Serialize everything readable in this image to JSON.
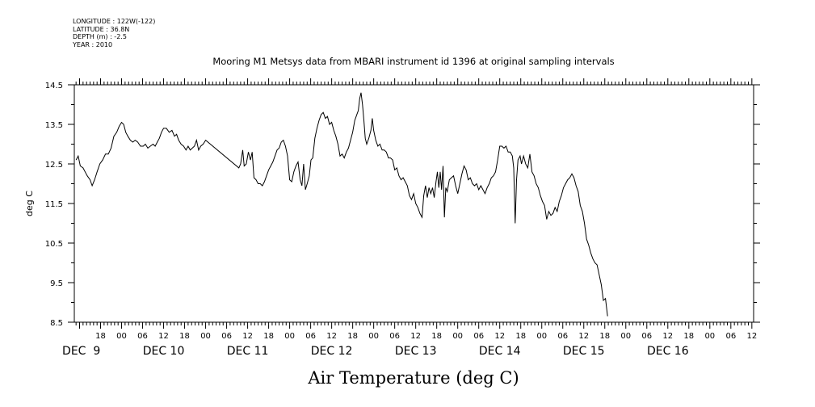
{
  "metadata": {
    "longitude": "LONGITUDE : 122W(-122)",
    "latitude": "LATITUDE : 36.8N",
    "depth": "DEPTH (m) : -2.5",
    "year": "YEAR : 2010"
  },
  "chart_data": {
    "type": "line",
    "title": "Mooring M1 Metsys data from MBARI instrument id 1396 at original sampling intervals",
    "xlabel": "Air Temperature (deg C)",
    "ylabel": "deg C",
    "ylim": [
      8.5,
      14.5
    ],
    "y_ticks": [
      "8.5",
      "9.5",
      "10.5",
      "11.5",
      "12.5",
      "13.5",
      "14.5"
    ],
    "x_unit": "hours since DEC 8 2010 00:00",
    "xlim": [
      10.5,
      204.5
    ],
    "hour_ticks": [
      {
        "h": 18,
        "label": "18"
      },
      {
        "h": 24,
        "label": "00"
      },
      {
        "h": 30,
        "label": "06"
      },
      {
        "h": 36,
        "label": "12"
      },
      {
        "h": 42,
        "label": "18"
      },
      {
        "h": 48,
        "label": "00"
      },
      {
        "h": 54,
        "label": "06"
      },
      {
        "h": 60,
        "label": "12"
      },
      {
        "h": 66,
        "label": "18"
      },
      {
        "h": 72,
        "label": "00"
      },
      {
        "h": 78,
        "label": "06"
      },
      {
        "h": 84,
        "label": "12"
      },
      {
        "h": 90,
        "label": "18"
      },
      {
        "h": 96,
        "label": "00"
      },
      {
        "h": 102,
        "label": "06"
      },
      {
        "h": 108,
        "label": "12"
      },
      {
        "h": 114,
        "label": "18"
      },
      {
        "h": 120,
        "label": "00"
      },
      {
        "h": 126,
        "label": "06"
      },
      {
        "h": 132,
        "label": "12"
      },
      {
        "h": 138,
        "label": "18"
      },
      {
        "h": 144,
        "label": "00"
      },
      {
        "h": 150,
        "label": "06"
      },
      {
        "h": 156,
        "label": "12"
      },
      {
        "h": 162,
        "label": "18"
      },
      {
        "h": 168,
        "label": "00"
      },
      {
        "h": 174,
        "label": "06"
      },
      {
        "h": 180,
        "label": "12"
      },
      {
        "h": 186,
        "label": "18"
      },
      {
        "h": 192,
        "label": "00"
      },
      {
        "h": 198,
        "label": "06"
      },
      {
        "h": 204,
        "label": "12"
      }
    ],
    "date_labels": [
      {
        "h": 12.5,
        "label": "DEC  9"
      },
      {
        "h": 36,
        "label": "DEC 10"
      },
      {
        "h": 60,
        "label": "DEC 11"
      },
      {
        "h": 84,
        "label": "DEC 12"
      },
      {
        "h": 108,
        "label": "DEC 13"
      },
      {
        "h": 132,
        "label": "DEC 14"
      },
      {
        "h": 156,
        "label": "DEC 15"
      },
      {
        "h": 180,
        "label": "DEC 16"
      }
    ],
    "series": [
      {
        "values": [
          [
            11.0,
            12.6
          ],
          [
            11.6,
            12.7
          ],
          [
            12.2,
            12.45
          ],
          [
            13.0,
            12.4
          ],
          [
            13.6,
            12.3
          ],
          [
            14.2,
            12.2
          ],
          [
            15.0,
            12.1
          ],
          [
            15.6,
            11.95
          ],
          [
            16.3,
            12.1
          ],
          [
            17.0,
            12.3
          ],
          [
            17.8,
            12.5
          ],
          [
            18.6,
            12.6
          ],
          [
            19.4,
            12.75
          ],
          [
            20.2,
            12.75
          ],
          [
            21.0,
            12.9
          ],
          [
            21.8,
            13.2
          ],
          [
            22.6,
            13.3
          ],
          [
            23.3,
            13.45
          ],
          [
            24.0,
            13.55
          ],
          [
            24.6,
            13.5
          ],
          [
            25.2,
            13.3
          ],
          [
            25.8,
            13.2
          ],
          [
            26.5,
            13.1
          ],
          [
            27.2,
            13.05
          ],
          [
            27.9,
            13.1
          ],
          [
            28.6,
            13.05
          ],
          [
            29.4,
            12.95
          ],
          [
            30.2,
            12.95
          ],
          [
            30.8,
            13.0
          ],
          [
            31.5,
            12.9
          ],
          [
            32.2,
            12.95
          ],
          [
            33.0,
            13.0
          ],
          [
            33.6,
            12.95
          ],
          [
            34.2,
            13.05
          ],
          [
            34.8,
            13.15
          ],
          [
            35.4,
            13.3
          ],
          [
            36.0,
            13.4
          ],
          [
            36.8,
            13.4
          ],
          [
            37.6,
            13.3
          ],
          [
            38.4,
            13.35
          ],
          [
            39.1,
            13.2
          ],
          [
            39.7,
            13.25
          ],
          [
            40.3,
            13.1
          ],
          [
            41.0,
            13.0
          ],
          [
            41.7,
            12.95
          ],
          [
            42.4,
            12.85
          ],
          [
            43.0,
            12.95
          ],
          [
            43.6,
            12.85
          ],
          [
            44.2,
            12.9
          ],
          [
            44.8,
            12.95
          ],
          [
            45.4,
            13.1
          ],
          [
            46.0,
            12.85
          ],
          [
            46.6,
            12.95
          ],
          [
            47.3,
            13.0
          ],
          [
            48.0,
            13.1
          ],
          [
            57.5,
            12.4
          ],
          [
            58.0,
            12.5
          ],
          [
            58.6,
            12.85
          ],
          [
            59.0,
            12.45
          ],
          [
            59.6,
            12.5
          ],
          [
            60.2,
            12.8
          ],
          [
            60.8,
            12.6
          ],
          [
            61.3,
            12.8
          ],
          [
            61.8,
            12.15
          ],
          [
            62.4,
            12.1
          ],
          [
            63.0,
            12.0
          ],
          [
            63.6,
            12.0
          ],
          [
            64.2,
            11.95
          ],
          [
            64.8,
            12.05
          ],
          [
            65.4,
            12.2
          ],
          [
            66.0,
            12.35
          ],
          [
            66.6,
            12.45
          ],
          [
            67.2,
            12.55
          ],
          [
            67.8,
            12.7
          ],
          [
            68.4,
            12.85
          ],
          [
            69.0,
            12.9
          ],
          [
            69.6,
            13.05
          ],
          [
            70.2,
            13.1
          ],
          [
            70.8,
            12.95
          ],
          [
            71.4,
            12.7
          ],
          [
            72.0,
            12.1
          ],
          [
            72.6,
            12.05
          ],
          [
            73.2,
            12.3
          ],
          [
            73.8,
            12.45
          ],
          [
            74.4,
            12.55
          ],
          [
            75.0,
            12.1
          ],
          [
            75.5,
            11.95
          ],
          [
            76.0,
            12.5
          ],
          [
            76.5,
            11.85
          ],
          [
            77.0,
            12.0
          ],
          [
            77.6,
            12.2
          ],
          [
            78.1,
            12.6
          ],
          [
            78.6,
            12.65
          ],
          [
            79.2,
            13.15
          ],
          [
            79.8,
            13.4
          ],
          [
            80.4,
            13.6
          ],
          [
            81.0,
            13.75
          ],
          [
            81.6,
            13.8
          ],
          [
            82.2,
            13.65
          ],
          [
            82.8,
            13.7
          ],
          [
            83.4,
            13.5
          ],
          [
            84.0,
            13.55
          ],
          [
            84.6,
            13.35
          ],
          [
            85.2,
            13.2
          ],
          [
            85.8,
            13.0
          ],
          [
            86.4,
            12.7
          ],
          [
            87.0,
            12.75
          ],
          [
            87.6,
            12.65
          ],
          [
            88.2,
            12.8
          ],
          [
            88.8,
            12.9
          ],
          [
            89.4,
            13.1
          ],
          [
            90.0,
            13.3
          ],
          [
            90.6,
            13.6
          ],
          [
            91.2,
            13.75
          ],
          [
            91.6,
            13.85
          ],
          [
            92.0,
            14.15
          ],
          [
            92.4,
            14.3
          ],
          [
            92.8,
            14.0
          ],
          [
            93.2,
            13.6
          ],
          [
            93.6,
            13.15
          ],
          [
            94.0,
            13.0
          ],
          [
            94.6,
            13.15
          ],
          [
            95.2,
            13.35
          ],
          [
            95.6,
            13.65
          ],
          [
            96.0,
            13.35
          ],
          [
            96.6,
            13.1
          ],
          [
            97.2,
            12.95
          ],
          [
            97.8,
            13.0
          ],
          [
            98.4,
            12.85
          ],
          [
            99.0,
            12.85
          ],
          [
            99.6,
            12.8
          ],
          [
            100.2,
            12.65
          ],
          [
            100.8,
            12.65
          ],
          [
            101.4,
            12.6
          ],
          [
            102.0,
            12.35
          ],
          [
            102.6,
            12.4
          ],
          [
            103.2,
            12.2
          ],
          [
            103.8,
            12.1
          ],
          [
            104.4,
            12.15
          ],
          [
            105.0,
            12.05
          ],
          [
            105.6,
            11.95
          ],
          [
            106.2,
            11.7
          ],
          [
            106.8,
            11.6
          ],
          [
            107.4,
            11.75
          ],
          [
            108.0,
            11.5
          ],
          [
            108.6,
            11.4
          ],
          [
            109.2,
            11.25
          ],
          [
            109.8,
            11.15
          ],
          [
            110.3,
            11.7
          ],
          [
            110.8,
            11.95
          ],
          [
            111.3,
            11.65
          ],
          [
            111.8,
            11.9
          ],
          [
            112.3,
            11.75
          ],
          [
            112.8,
            11.9
          ],
          [
            113.3,
            11.65
          ],
          [
            113.8,
            12.05
          ],
          [
            114.2,
            12.3
          ],
          [
            114.6,
            11.9
          ],
          [
            115.0,
            12.3
          ],
          [
            115.4,
            11.85
          ],
          [
            115.8,
            12.45
          ],
          [
            116.2,
            11.15
          ],
          [
            116.6,
            11.9
          ],
          [
            117.0,
            11.8
          ],
          [
            117.6,
            12.1
          ],
          [
            118.2,
            12.15
          ],
          [
            118.8,
            12.2
          ],
          [
            119.4,
            11.95
          ],
          [
            120.0,
            11.75
          ],
          [
            120.6,
            12.0
          ],
          [
            121.2,
            12.25
          ],
          [
            121.8,
            12.45
          ],
          [
            122.4,
            12.35
          ],
          [
            123.0,
            12.1
          ],
          [
            123.6,
            12.15
          ],
          [
            124.2,
            12.0
          ],
          [
            124.8,
            11.95
          ],
          [
            125.4,
            12.0
          ],
          [
            126.0,
            11.85
          ],
          [
            126.6,
            11.95
          ],
          [
            127.2,
            11.85
          ],
          [
            127.8,
            11.75
          ],
          [
            128.4,
            11.9
          ],
          [
            129.0,
            12.0
          ],
          [
            129.6,
            12.15
          ],
          [
            130.2,
            12.2
          ],
          [
            130.8,
            12.3
          ],
          [
            131.4,
            12.6
          ],
          [
            132.0,
            12.95
          ],
          [
            132.6,
            12.95
          ],
          [
            133.2,
            12.9
          ],
          [
            133.8,
            12.95
          ],
          [
            134.4,
            12.8
          ],
          [
            135.0,
            12.8
          ],
          [
            135.6,
            12.7
          ],
          [
            136.0,
            12.4
          ],
          [
            136.4,
            11.0
          ],
          [
            136.8,
            12.1
          ],
          [
            137.2,
            12.6
          ],
          [
            137.8,
            12.7
          ],
          [
            138.2,
            12.5
          ],
          [
            138.8,
            12.7
          ],
          [
            139.4,
            12.5
          ],
          [
            140.0,
            12.4
          ],
          [
            140.6,
            12.75
          ],
          [
            141.2,
            12.3
          ],
          [
            141.8,
            12.2
          ],
          [
            142.4,
            12.0
          ],
          [
            143.0,
            11.9
          ],
          [
            143.6,
            11.7
          ],
          [
            144.2,
            11.55
          ],
          [
            144.8,
            11.45
          ],
          [
            145.4,
            11.1
          ],
          [
            146.0,
            11.3
          ],
          [
            146.6,
            11.2
          ],
          [
            147.2,
            11.25
          ],
          [
            147.8,
            11.4
          ],
          [
            148.4,
            11.3
          ],
          [
            149.0,
            11.55
          ],
          [
            149.6,
            11.7
          ],
          [
            150.2,
            11.9
          ],
          [
            150.8,
            12.0
          ],
          [
            151.4,
            12.1
          ],
          [
            152.0,
            12.15
          ],
          [
            152.6,
            12.25
          ],
          [
            153.2,
            12.15
          ],
          [
            153.8,
            11.95
          ],
          [
            154.4,
            11.8
          ],
          [
            155.0,
            11.45
          ],
          [
            155.6,
            11.3
          ],
          [
            156.2,
            11.0
          ],
          [
            156.8,
            10.6
          ],
          [
            157.4,
            10.45
          ],
          [
            158.0,
            10.25
          ],
          [
            158.6,
            10.1
          ],
          [
            159.2,
            10.0
          ],
          [
            159.8,
            9.95
          ],
          [
            160.4,
            9.7
          ],
          [
            161.0,
            9.45
          ],
          [
            161.6,
            9.05
          ],
          [
            162.2,
            9.1
          ],
          [
            162.8,
            8.65
          ]
        ]
      }
    ],
    "line_color": "#000000",
    "grid": false
  }
}
